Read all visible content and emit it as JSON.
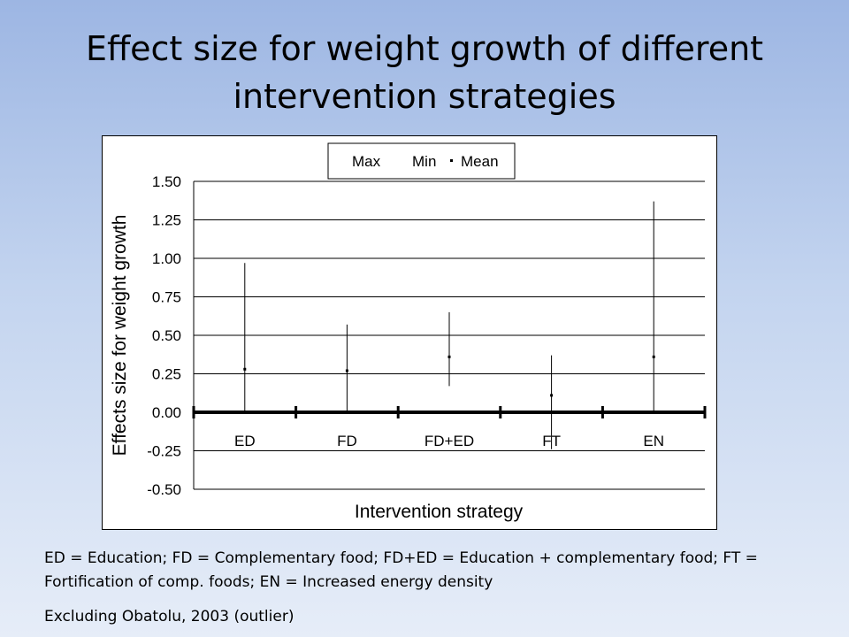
{
  "slide": {
    "title_line1": "Effect size for weight growth of different",
    "title_line2": "intervention strategies",
    "caption_line1": "ED = Education; FD = Complementary food; FD+ED = Education + complementary food; FT = Fortification of comp. foods; EN = Increased energy density",
    "caption_line2": "Excluding Obatolu, 2003 (outlier)"
  },
  "chart_data": {
    "type": "stock-hilo",
    "title": "",
    "xlabel": "Intervention strategy",
    "ylabel": "Effects size for weight growth",
    "categories": [
      "ED",
      "FD",
      "FD+ED",
      "FT",
      "EN"
    ],
    "series": [
      {
        "name": "Max",
        "values": [
          0.97,
          0.57,
          0.65,
          0.37,
          1.37
        ]
      },
      {
        "name": "Min",
        "values": [
          0.0,
          0.0,
          0.17,
          -0.24,
          0.0
        ]
      },
      {
        "name": "Mean",
        "values": [
          0.28,
          0.27,
          0.36,
          0.11,
          0.36
        ]
      }
    ],
    "ylim": [
      -0.5,
      1.5
    ],
    "yticks": [
      "1.50",
      "1.25",
      "1.00",
      "0.75",
      "0.50",
      "0.25",
      "0.00",
      "-0.25",
      "-0.50"
    ],
    "grid": true,
    "legend_position": "top"
  }
}
